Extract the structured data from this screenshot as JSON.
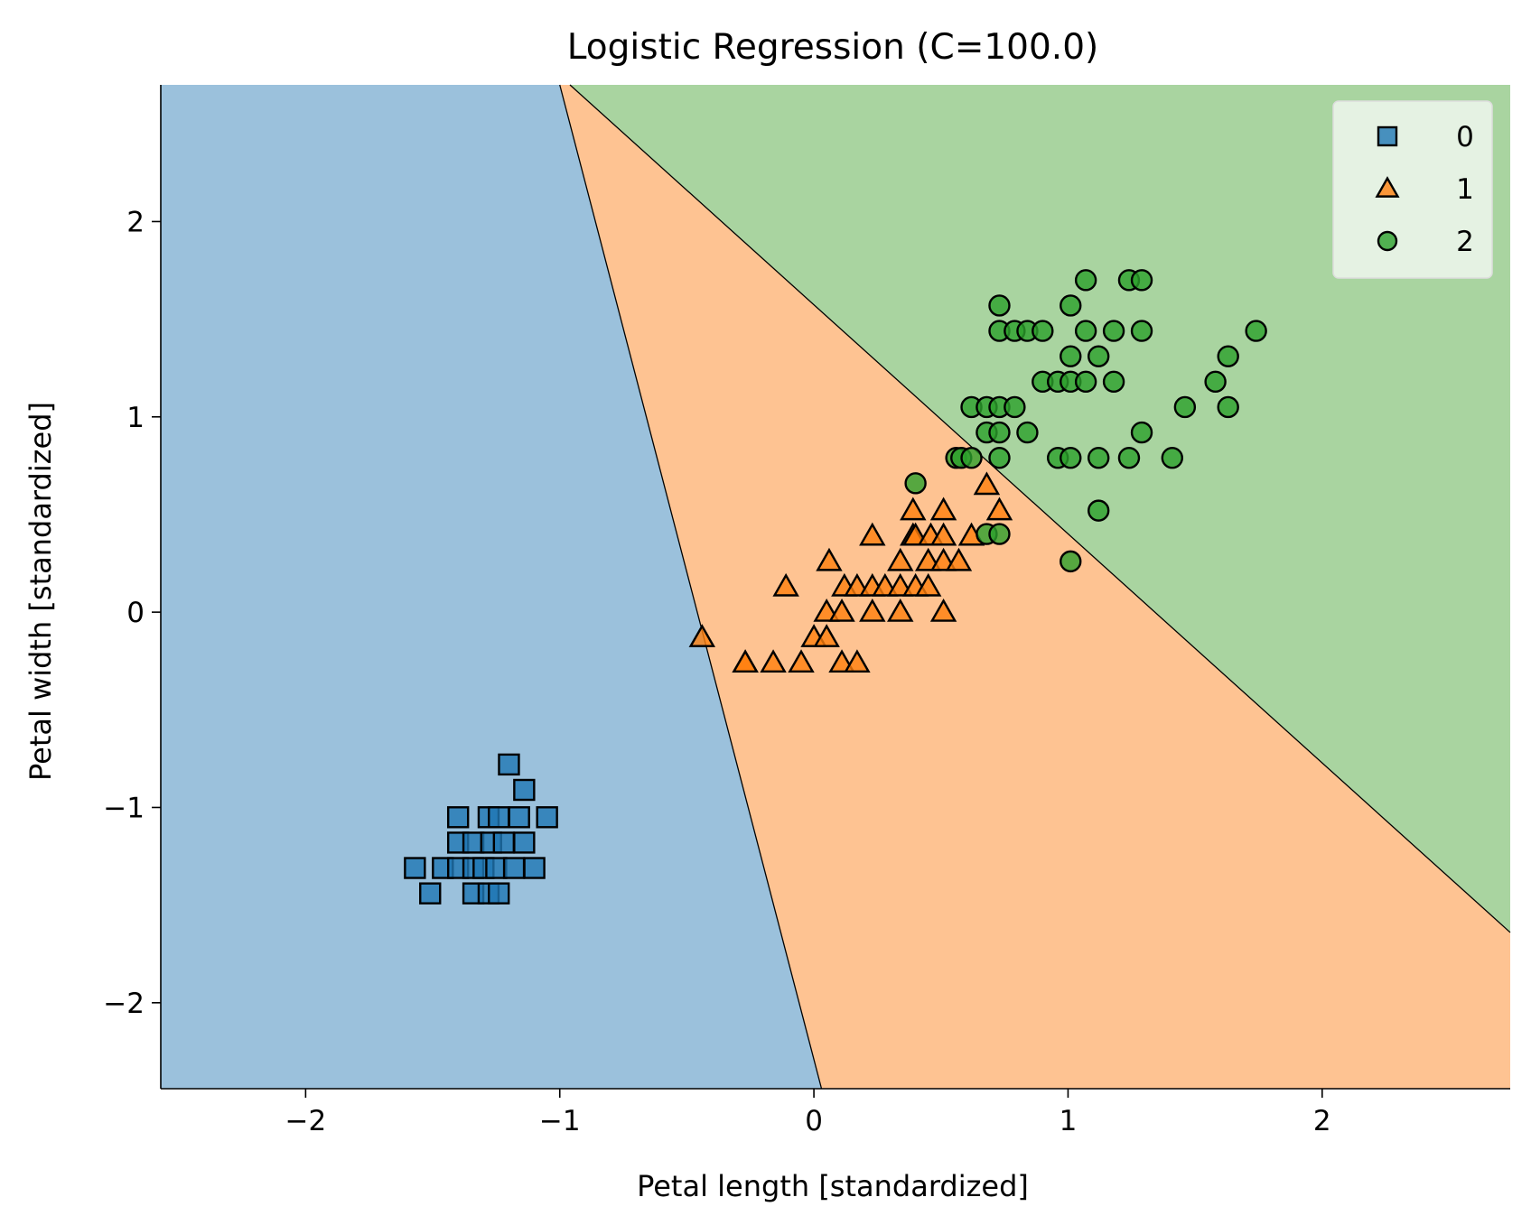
{
  "chart_data": {
    "type": "scatter",
    "title": "Logistic Regression (C=100.0)",
    "xlabel": "Petal length [standardized]",
    "ylabel": "Petal width [standardized]",
    "xlim": [
      -2.57,
      2.74
    ],
    "ylim": [
      -2.44,
      2.7
    ],
    "xticks": [
      -2,
      -1,
      0,
      1,
      2
    ],
    "yticks": [
      -2,
      -1,
      0,
      1,
      2
    ],
    "xtick_labels": [
      "−2",
      "−1",
      "0",
      "1",
      "2"
    ],
    "ytick_labels": [
      "−2",
      "−1",
      "0",
      "1",
      "2"
    ],
    "grid": false,
    "legend_position": "top-right",
    "decision_regions": [
      {
        "class": "0",
        "color": "#9bc1dc",
        "polygon": [
          [
            -2.57,
            2.7
          ],
          [
            -1.0,
            2.7
          ],
          [
            0.03,
            -2.44
          ],
          [
            -2.57,
            -2.44
          ]
        ]
      },
      {
        "class": "1",
        "color": "#fec392",
        "polygon": [
          [
            -1.0,
            2.7
          ],
          [
            -0.96,
            2.7
          ],
          [
            2.74,
            -1.64
          ],
          [
            2.74,
            -2.44
          ],
          [
            0.03,
            -2.44
          ]
        ]
      },
      {
        "class": "2",
        "color": "#a9d4a0",
        "polygon": [
          [
            -0.96,
            2.7
          ],
          [
            2.74,
            2.7
          ],
          [
            2.74,
            -1.64
          ]
        ]
      }
    ],
    "boundaries": [
      {
        "from": [
          -1.0,
          2.7
        ],
        "to": [
          0.03,
          -2.44
        ]
      },
      {
        "from": [
          -0.96,
          2.7
        ],
        "to": [
          2.74,
          -1.64
        ]
      }
    ],
    "series": [
      {
        "name": "0",
        "marker": "square",
        "color": "#1f77b4",
        "points": [
          [
            -1.57,
            -1.31
          ],
          [
            -1.51,
            -1.44
          ],
          [
            -1.46,
            -1.31
          ],
          [
            -1.4,
            -1.31
          ],
          [
            -1.4,
            -1.18
          ],
          [
            -1.4,
            -1.05
          ],
          [
            -1.34,
            -1.44
          ],
          [
            -1.34,
            -1.31
          ],
          [
            -1.34,
            -1.18
          ],
          [
            -1.3,
            -1.31
          ],
          [
            -1.28,
            -1.05
          ],
          [
            -1.28,
            -1.44
          ],
          [
            -1.27,
            -1.18
          ],
          [
            -1.25,
            -1.31
          ],
          [
            -1.24,
            -1.05
          ],
          [
            -1.24,
            -1.44
          ],
          [
            -1.22,
            -1.18
          ],
          [
            -1.2,
            -0.78
          ],
          [
            -1.18,
            -1.31
          ],
          [
            -1.16,
            -1.05
          ],
          [
            -1.14,
            -0.91
          ],
          [
            -1.14,
            -1.18
          ],
          [
            -1.1,
            -1.31
          ],
          [
            -1.05,
            -1.05
          ]
        ]
      },
      {
        "name": "1",
        "marker": "triangle",
        "color": "#ff7f0e",
        "points": [
          [
            -0.44,
            -0.13
          ],
          [
            -0.27,
            -0.26
          ],
          [
            -0.27,
            -0.26
          ],
          [
            -0.16,
            -0.26
          ],
          [
            -0.11,
            0.13
          ],
          [
            -0.05,
            -0.26
          ],
          [
            0.0,
            -0.13
          ],
          [
            0.05,
            -0.13
          ],
          [
            0.05,
            0.0
          ],
          [
            0.06,
            0.26
          ],
          [
            0.11,
            -0.26
          ],
          [
            0.11,
            0.0
          ],
          [
            0.12,
            0.13
          ],
          [
            0.17,
            -0.26
          ],
          [
            0.17,
            0.13
          ],
          [
            0.23,
            0.0
          ],
          [
            0.23,
            0.13
          ],
          [
            0.23,
            0.39
          ],
          [
            0.28,
            0.13
          ],
          [
            0.34,
            0.0
          ],
          [
            0.34,
            0.13
          ],
          [
            0.34,
            0.26
          ],
          [
            0.39,
            0.39
          ],
          [
            0.39,
            0.52
          ],
          [
            0.4,
            0.13
          ],
          [
            0.4,
            0.39
          ],
          [
            0.45,
            0.13
          ],
          [
            0.45,
            0.26
          ],
          [
            0.46,
            0.39
          ],
          [
            0.51,
            0.0
          ],
          [
            0.51,
            0.26
          ],
          [
            0.51,
            0.39
          ],
          [
            0.51,
            0.52
          ],
          [
            0.57,
            0.26
          ],
          [
            0.62,
            0.39
          ],
          [
            0.68,
            0.65
          ],
          [
            0.73,
            0.52
          ]
        ]
      },
      {
        "name": "2",
        "marker": "circle",
        "color": "#2ca02c",
        "points": [
          [
            0.4,
            0.66
          ],
          [
            0.56,
            0.79
          ],
          [
            0.58,
            0.79
          ],
          [
            0.62,
            0.79
          ],
          [
            0.62,
            1.05
          ],
          [
            0.68,
            0.4
          ],
          [
            0.68,
            0.92
          ],
          [
            0.68,
            1.05
          ],
          [
            0.73,
            0.4
          ],
          [
            0.73,
            0.79
          ],
          [
            0.73,
            0.92
          ],
          [
            0.73,
            1.05
          ],
          [
            0.73,
            1.44
          ],
          [
            0.73,
            1.57
          ],
          [
            0.79,
            1.05
          ],
          [
            0.79,
            1.44
          ],
          [
            0.84,
            0.92
          ],
          [
            0.84,
            1.44
          ],
          [
            0.9,
            1.18
          ],
          [
            0.9,
            1.44
          ],
          [
            0.96,
            0.79
          ],
          [
            0.96,
            1.18
          ],
          [
            1.01,
            0.26
          ],
          [
            1.01,
            0.79
          ],
          [
            1.01,
            1.18
          ],
          [
            1.01,
            1.31
          ],
          [
            1.01,
            1.57
          ],
          [
            1.07,
            1.18
          ],
          [
            1.07,
            1.44
          ],
          [
            1.07,
            1.7
          ],
          [
            1.12,
            0.52
          ],
          [
            1.12,
            0.79
          ],
          [
            1.12,
            1.31
          ],
          [
            1.18,
            1.18
          ],
          [
            1.18,
            1.44
          ],
          [
            1.24,
            0.79
          ],
          [
            1.24,
            1.7
          ],
          [
            1.29,
            0.92
          ],
          [
            1.29,
            1.44
          ],
          [
            1.29,
            1.7
          ],
          [
            1.41,
            0.79
          ],
          [
            1.46,
            1.05
          ],
          [
            1.58,
            1.18
          ],
          [
            1.63,
            1.05
          ],
          [
            1.63,
            1.31
          ],
          [
            1.74,
            1.44
          ]
        ]
      }
    ]
  }
}
